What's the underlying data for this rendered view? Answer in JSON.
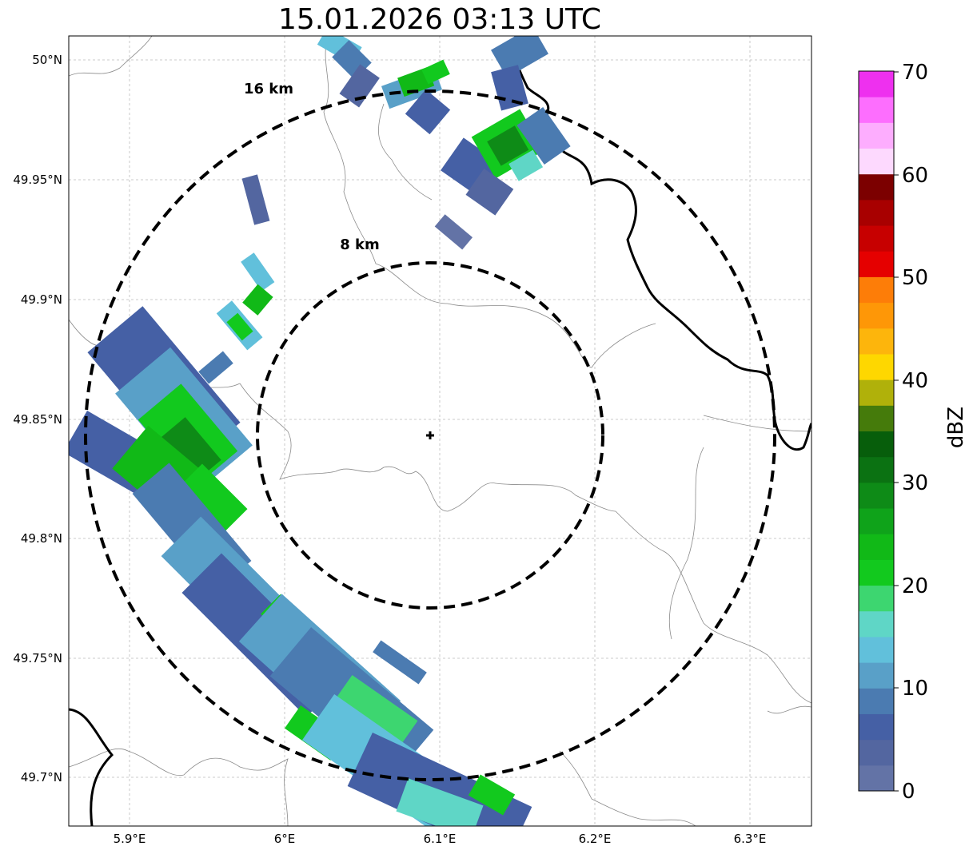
{
  "title": "15.01.2026 03:13 UTC",
  "map": {
    "lat_ticks": [
      "50°N",
      "49.95°N",
      "49.9°N",
      "49.85°N",
      "49.8°N",
      "49.75°N",
      "49.7°N"
    ],
    "lon_ticks": [
      "5.9°E",
      "6°E",
      "6.1°E",
      "6.2°E",
      "6.3°E"
    ],
    "ring_labels": [
      "16 km",
      "8 km"
    ],
    "radar_site_icon": "plus-icon"
  },
  "colorbar": {
    "label": "dBZ",
    "ticks": [
      "0",
      "10",
      "20",
      "30",
      "40",
      "50",
      "60",
      "70"
    ],
    "colors": [
      "#6373a6",
      "#5366a0",
      "#4560a5",
      "#4b7bb1",
      "#59a0c8",
      "#61c0db",
      "#5fd6c6",
      "#3dd670",
      "#12c91e",
      "#11b917",
      "#0fa31a",
      "#0e8b17",
      "#0b7212",
      "#075e0b",
      "#457b0b",
      "#b0b10a",
      "#fed700",
      "#fdb50c",
      "#fe9707",
      "#fd7d08",
      "#e50000",
      "#c70000",
      "#a80000",
      "#7c0000",
      "#fdd9fe",
      "#fdadfe",
      "#fd6efe",
      "#ee30ef"
    ]
  }
}
